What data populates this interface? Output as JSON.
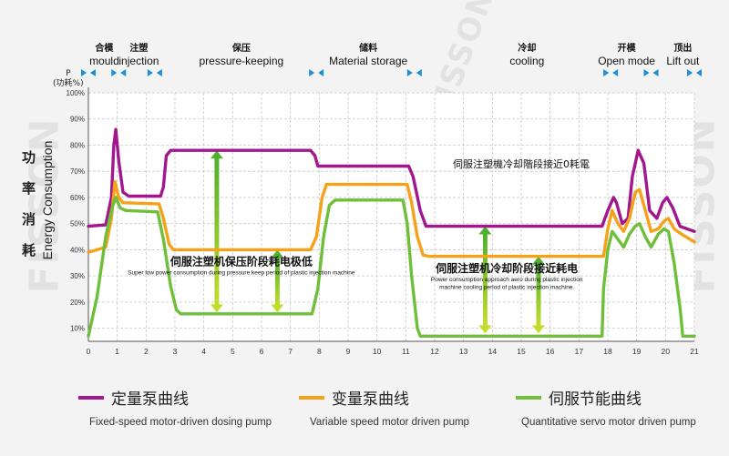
{
  "watermark": "FISSON",
  "y_unit_symbol": "P",
  "y_unit_cn": "(功耗%)",
  "y_title_cn": [
    "功",
    "率",
    "消",
    "耗"
  ],
  "chart_data": {
    "type": "line",
    "ylabel": "Energy Consumption",
    "xlim": [
      0,
      21
    ],
    "ylim": [
      5,
      100
    ],
    "x_ticks": [
      0,
      1,
      2,
      3,
      4,
      5,
      6,
      7,
      8,
      9,
      10,
      11,
      12,
      13,
      14,
      15,
      16,
      17,
      18,
      19,
      20,
      21
    ],
    "y_ticks": [
      {
        "v": 10,
        "t": "10%"
      },
      {
        "v": 20,
        "t": "20%"
      },
      {
        "v": 30,
        "t": "30%"
      },
      {
        "v": 40,
        "t": "40%"
      },
      {
        "v": 50,
        "t": "50%"
      },
      {
        "v": 60,
        "t": "60%"
      },
      {
        "v": 70,
        "t": "70%"
      },
      {
        "v": 80,
        "t": "80%"
      },
      {
        "v": 90,
        "t": "90%"
      },
      {
        "v": 100,
        "t": "100%"
      }
    ],
    "grid": true,
    "phases": [
      {
        "cn": "合模",
        "en": "mould",
        "x": 0.55
      },
      {
        "cn": "注塑",
        "en": "injection",
        "x": 1.75
      },
      {
        "cn": "保压",
        "en": "pressure-keeping",
        "x": 5.3
      },
      {
        "cn": "储料",
        "en": "Material storage",
        "x": 9.7
      },
      {
        "cn": "冷却",
        "en": "cooling",
        "x": 15.2
      },
      {
        "cn": "开模",
        "en": "Open mode",
        "x": 18.65
      },
      {
        "cn": "顶出",
        "en": "Lift out",
        "x": 20.6
      }
    ],
    "phase_bounds": [
      0,
      1.05,
      2.3,
      7.9,
      11.3,
      18.1,
      19.5,
      21
    ],
    "series": [
      {
        "name": "定量泵曲线",
        "name_en": "Fixed-speed motor-driven dosing pump",
        "color": "#a0178e",
        "points": [
          [
            0,
            49
          ],
          [
            0.6,
            49.5
          ],
          [
            0.8,
            60
          ],
          [
            0.88,
            80
          ],
          [
            0.95,
            86
          ],
          [
            1.05,
            74
          ],
          [
            1.2,
            62
          ],
          [
            1.4,
            60.5
          ],
          [
            2.5,
            60.5
          ],
          [
            2.6,
            64
          ],
          [
            2.7,
            76
          ],
          [
            2.85,
            78
          ],
          [
            7.7,
            78
          ],
          [
            7.85,
            76
          ],
          [
            7.95,
            72
          ],
          [
            11.1,
            72
          ],
          [
            11.25,
            68
          ],
          [
            11.5,
            55
          ],
          [
            11.7,
            49
          ],
          [
            17.8,
            49
          ],
          [
            18,
            55
          ],
          [
            18.2,
            60
          ],
          [
            18.3,
            58
          ],
          [
            18.5,
            50
          ],
          [
            18.7,
            52
          ],
          [
            18.85,
            68
          ],
          [
            19.05,
            78
          ],
          [
            19.25,
            73
          ],
          [
            19.45,
            55
          ],
          [
            19.7,
            52
          ],
          [
            19.9,
            58
          ],
          [
            20.05,
            60
          ],
          [
            20.25,
            56
          ],
          [
            20.5,
            49
          ],
          [
            21,
            47
          ]
        ]
      },
      {
        "name": "变量泵曲线",
        "name_en": "Variable speed motor driven pump",
        "color": "#f5a21a",
        "points": [
          [
            0,
            39
          ],
          [
            0.6,
            41
          ],
          [
            0.8,
            52
          ],
          [
            0.92,
            66
          ],
          [
            1.05,
            60
          ],
          [
            1.2,
            58
          ],
          [
            2.45,
            57.5
          ],
          [
            2.6,
            52
          ],
          [
            2.8,
            42
          ],
          [
            2.95,
            40
          ],
          [
            7.7,
            40
          ],
          [
            7.9,
            45
          ],
          [
            8.1,
            60
          ],
          [
            8.25,
            65
          ],
          [
            11.05,
            65
          ],
          [
            11.2,
            58
          ],
          [
            11.4,
            45
          ],
          [
            11.6,
            38
          ],
          [
            11.8,
            37.5
          ],
          [
            17.85,
            37.5
          ],
          [
            18,
            48
          ],
          [
            18.15,
            55
          ],
          [
            18.35,
            50
          ],
          [
            18.55,
            47
          ],
          [
            18.75,
            52
          ],
          [
            18.95,
            62
          ],
          [
            19.1,
            63
          ],
          [
            19.3,
            55
          ],
          [
            19.5,
            47
          ],
          [
            19.75,
            48
          ],
          [
            19.95,
            51
          ],
          [
            20.1,
            52
          ],
          [
            20.3,
            48
          ],
          [
            20.55,
            46
          ],
          [
            21,
            43
          ]
        ]
      },
      {
        "name": "伺服节能曲线",
        "name_en": "Quantitative servo motor driven pump",
        "color": "#6fbf3a",
        "points": [
          [
            0,
            7
          ],
          [
            0.3,
            22
          ],
          [
            0.6,
            45
          ],
          [
            0.82,
            56
          ],
          [
            0.95,
            60
          ],
          [
            1.1,
            56
          ],
          [
            1.3,
            55
          ],
          [
            2.4,
            54.5
          ],
          [
            2.6,
            44
          ],
          [
            2.85,
            26
          ],
          [
            3.05,
            17
          ],
          [
            3.2,
            15.5
          ],
          [
            7.75,
            15.5
          ],
          [
            7.95,
            25
          ],
          [
            8.15,
            45
          ],
          [
            8.35,
            57
          ],
          [
            8.55,
            59
          ],
          [
            10.9,
            59
          ],
          [
            11.05,
            50
          ],
          [
            11.2,
            30
          ],
          [
            11.4,
            10
          ],
          [
            11.5,
            7
          ],
          [
            17.8,
            7
          ],
          [
            17.85,
            25
          ],
          [
            18,
            40
          ],
          [
            18.15,
            47
          ],
          [
            18.35,
            44
          ],
          [
            18.55,
            41
          ],
          [
            18.75,
            46
          ],
          [
            18.95,
            49
          ],
          [
            19.1,
            50
          ],
          [
            19.3,
            45
          ],
          [
            19.5,
            41
          ],
          [
            19.75,
            46
          ],
          [
            19.95,
            48
          ],
          [
            20.1,
            47
          ],
          [
            20.3,
            35
          ],
          [
            20.5,
            18
          ],
          [
            20.6,
            7
          ],
          [
            21,
            7
          ]
        ]
      }
    ],
    "annotations": [
      {
        "id": "servo-idle-note",
        "text": "伺服注塑機冷却階段接近0耗電",
        "x": 15.0,
        "y": 71.5,
        "size": 11,
        "weight": "normal"
      },
      {
        "id": "hold-note-cn",
        "text": "伺服注塑机保压阶段耗电极低",
        "x": 5.3,
        "y": 34,
        "size": 12,
        "weight": "bold"
      },
      {
        "id": "hold-note-en",
        "text": "Super low power consumption during pressure keep period of plastic injection machine",
        "x": 5.3,
        "y": 30.5,
        "size": 6.5,
        "weight": "normal"
      },
      {
        "id": "cool-note-cn",
        "text": "伺服注塑机冷却阶段接近耗电",
        "x": 14.5,
        "y": 31.5,
        "size": 12,
        "weight": "bold"
      },
      {
        "id": "cool-note-en1",
        "text": "Power consumption approach aero during plastic injection",
        "x": 14.5,
        "y": 28,
        "size": 6.5,
        "weight": "normal"
      },
      {
        "id": "cool-note-en2",
        "text": "machine cooling period of plastic injection machine.",
        "x": 14.5,
        "y": 25,
        "size": 6.5,
        "weight": "normal"
      }
    ],
    "arrows": [
      {
        "x": 4.45,
        "y_top": 78,
        "y_bottom": 16,
        "color": "#7cc43a"
      },
      {
        "x": 6.55,
        "y_top": 40,
        "y_bottom": 16,
        "color": "#9ccc3a"
      },
      {
        "x": 13.75,
        "y_top": 49,
        "y_bottom": 8,
        "color": "#7cc43a"
      },
      {
        "x": 15.6,
        "y_top": 37.5,
        "y_bottom": 8,
        "color": "#9ccc3a"
      }
    ]
  }
}
